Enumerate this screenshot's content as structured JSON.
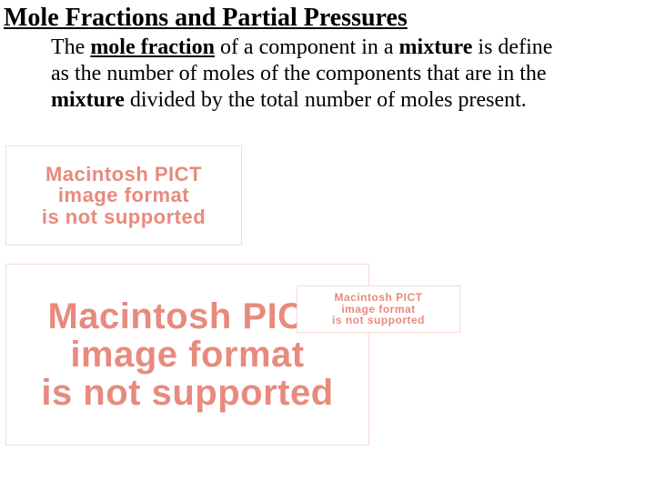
{
  "title": "Mole Fractions and Partial Pressures",
  "paragraph": {
    "p1": "The ",
    "p2_bold_ul": "mole fraction",
    "p3": " of a component in a ",
    "p4_bold": "mixture",
    "p5": " is define as the number of moles of the components that are in the ",
    "p6_bold": "mixture",
    "p7": " divided by the total number of moles present."
  },
  "pict_error": {
    "line1": "Macintosh PICT",
    "line2": "image format",
    "line3": "is not supported"
  },
  "colors": {
    "text": "#000000",
    "error_text": "#e88a7e",
    "error_border": "#f7d9d3",
    "background": "#ffffff"
  },
  "fonts": {
    "body_family": "Times New Roman",
    "body_size_pt": 18,
    "title_size_pt": 21,
    "error_family": "Arial",
    "error_weight": 800
  }
}
